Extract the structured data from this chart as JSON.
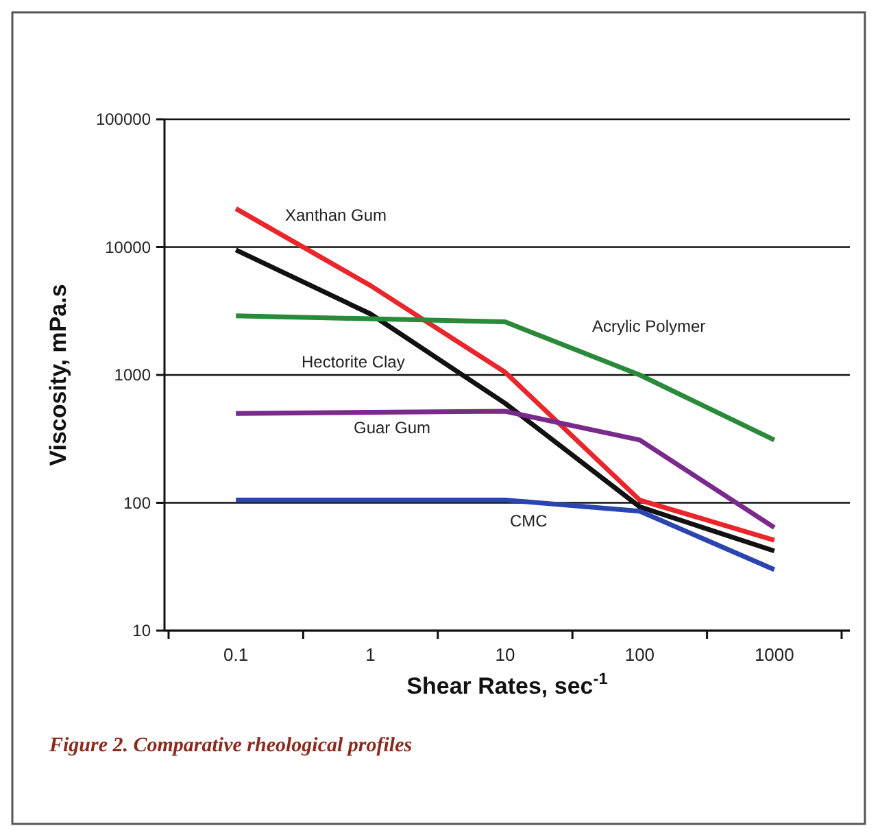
{
  "chart_data": {
    "type": "line",
    "xlabel": "Shear Rates, sec$^{-1}$",
    "ylabel": "Viscosity, mPa.s",
    "categories": [
      "0.1",
      "1",
      "10",
      "100",
      "1000"
    ],
    "log": true,
    "ylim": [
      10,
      100000
    ],
    "yticks": [
      10,
      100,
      1000,
      10000,
      100000
    ],
    "grid": "y",
    "legend": false,
    "marker": "none",
    "line_style": "solid",
    "series": [
      {
        "name": "Xanthan Gum",
        "color": "#e8262b",
        "values": [
          20000,
          5000,
          1050,
          105,
          51
        ]
      },
      {
        "name": "Hectorite Clay",
        "color": "#111111",
        "values": [
          9500,
          3000,
          600,
          93,
          42
        ]
      },
      {
        "name": "Acrylic Polymer",
        "color": "#2a8a3a",
        "values": [
          2900,
          2750,
          2600,
          1000,
          310
        ]
      },
      {
        "name": "Guar Gum",
        "color": "#7a2a8a",
        "values": [
          500,
          510,
          520,
          310,
          64
        ]
      },
      {
        "name": "CMC",
        "color": "#2a44b0",
        "values": [
          105,
          105,
          105,
          86,
          30
        ]
      }
    ],
    "annotations": [
      "Figure 2. Comparative rheological profiles"
    ]
  }
}
